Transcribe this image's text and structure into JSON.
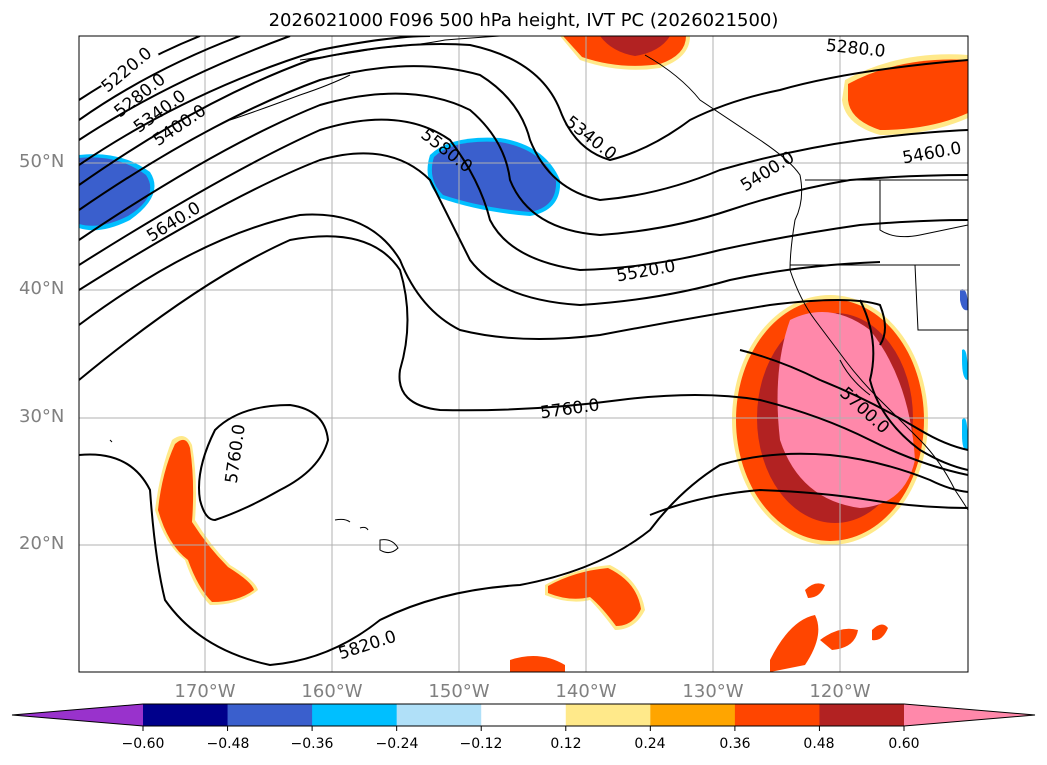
{
  "title": "2026021000 F096 500 hPa height, IVT PC (2026021500)",
  "lat_labels": [
    "50°N",
    "40°N",
    "30°N",
    "20°N"
  ],
  "lon_labels": [
    "170°W",
    "160°W",
    "150°W",
    "140°W",
    "130°W",
    "120°W"
  ],
  "colorbar": {
    "ticks": [
      "−0.60",
      "−0.48",
      "−0.36",
      "−0.24",
      "−0.12",
      "0.12",
      "0.24",
      "0.36",
      "0.48",
      "0.60"
    ],
    "colors": [
      "#9932cc",
      "#00008b",
      "#3a5fcd",
      "#00bfff",
      "#b0e0f8",
      "#ffffff",
      "#ffe98a",
      "#ffa500",
      "#ff4500",
      "#b22222",
      "#ff88aa"
    ]
  },
  "contour_labels": [
    "5220.0",
    "5280.0",
    "5340.0",
    "5400.0",
    "5580.0",
    "5640.0",
    "5340.0",
    "5400.0",
    "5460.0",
    "5280.0",
    "5520.0",
    "5760.0",
    "5700.0",
    "5760.0",
    "5820.0"
  ],
  "map_extent": {
    "lon_min": -180,
    "lon_max": -110,
    "lat_min": 10,
    "lat_max": 60
  }
}
